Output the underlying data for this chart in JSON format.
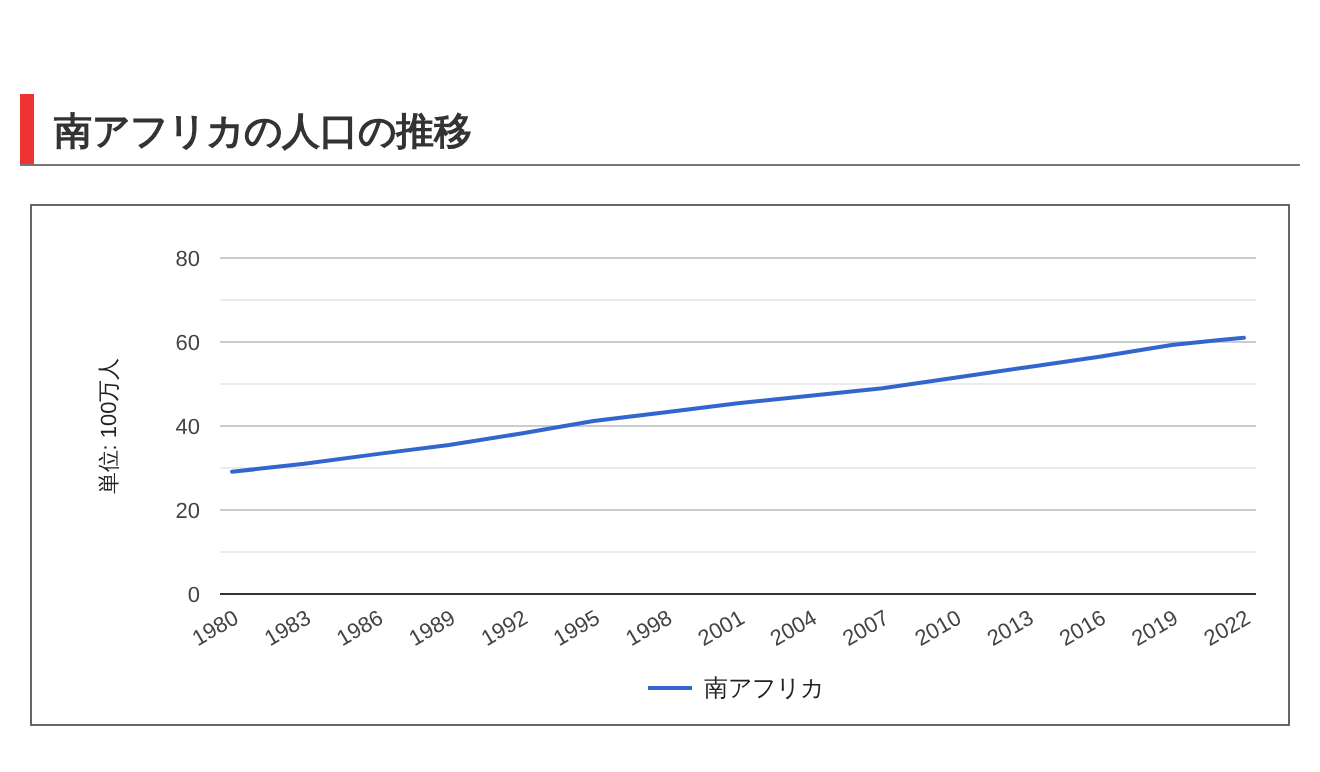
{
  "chart_data": {
    "type": "line",
    "title": "南アフリカの人口の推移",
    "ylabel": "単位: 100万人",
    "x": [
      1980,
      1983,
      1986,
      1989,
      1992,
      1995,
      1998,
      2001,
      2004,
      2007,
      2010,
      2013,
      2016,
      2019,
      2021,
      2022
    ],
    "series": [
      {
        "name": "南アフリカ",
        "color": "#3366cc",
        "values": [
          29.1,
          31.0,
          33.3,
          35.5,
          38.2,
          41.2,
          43.3,
          45.4,
          47.2,
          49.0,
          51.5,
          54.0,
          56.5,
          59.3,
          60.5,
          61.0
        ]
      }
    ],
    "xlim": [
      1979.5,
      2022.5
    ],
    "xticks": [
      1980,
      1983,
      1986,
      1989,
      1992,
      1995,
      1998,
      2001,
      2004,
      2007,
      2010,
      2013,
      2016,
      2019,
      2022
    ],
    "ylim": [
      0,
      80
    ],
    "yticks": [
      0,
      {
        "value": 10,
        "label": null
      },
      20,
      {
        "value": 30,
        "label": null
      },
      40,
      {
        "value": 50,
        "label": null
      },
      60,
      {
        "value": 70,
        "label": null
      },
      80
    ],
    "grid": "y",
    "legend": "bottom",
    "marker": "none",
    "line_style": "solid"
  }
}
